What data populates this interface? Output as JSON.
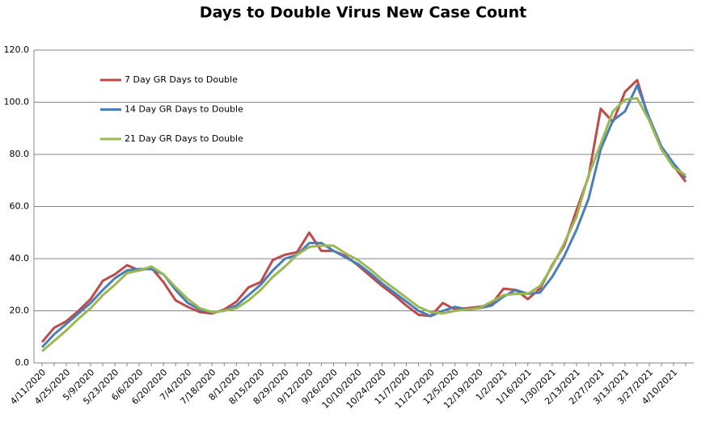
{
  "chart_data": {
    "type": "line",
    "title": "Days to Double Virus New Case Count",
    "categories": [
      "4/11/2020",
      null,
      "4/25/2020",
      null,
      "5/9/2020",
      null,
      "5/23/2020",
      null,
      "6/6/2020",
      null,
      "6/20/2020",
      null,
      "7/4/2020",
      null,
      "7/18/2020",
      null,
      "8/1/2020",
      null,
      "8/15/2020",
      null,
      "8/29/2020",
      null,
      "9/12/2020",
      null,
      "9/26/2020",
      null,
      "10/10/2020",
      null,
      "10/24/2020",
      null,
      "11/7/2020",
      null,
      "11/21/2020",
      null,
      "12/5/2020",
      null,
      "12/19/2020",
      null,
      "1/2/2021",
      null,
      "1/16/2021",
      null,
      "1/30/2021",
      null,
      "2/13/2021",
      null,
      "2/27/2021",
      null,
      "3/13/2021",
      null,
      "3/27/2021",
      null,
      "4/10/2021",
      null
    ],
    "series": [
      {
        "name": "7 Day GR Days to Double",
        "color": "#be4b48",
        "values": [
          8,
          13.5,
          16,
          20,
          24.5,
          31.5,
          34,
          37.5,
          35.5,
          36.5,
          31,
          24,
          21.5,
          19.5,
          19,
          20.5,
          23.5,
          29,
          31,
          39.5,
          41.5,
          42.5,
          50,
          43,
          43,
          41,
          37.5,
          33.5,
          29.5,
          26,
          22,
          18.5,
          18,
          23,
          20.5,
          21,
          21.5,
          22.5,
          28.5,
          28,
          24.5,
          28.5,
          37.5,
          45,
          58.5,
          71.5,
          97.5,
          92.5,
          104,
          108.5,
          93,
          82,
          75.5,
          69.5
        ]
      },
      {
        "name": "14 Day GR Days to Double",
        "color": "#4a7ebb",
        "values": [
          6,
          11,
          15,
          19,
          23,
          28,
          32.5,
          35.5,
          36,
          36,
          34,
          28,
          23,
          20.5,
          19.5,
          20,
          22,
          26,
          30,
          35.5,
          40,
          41.5,
          46,
          46,
          43,
          40.5,
          38,
          34.5,
          30.5,
          27,
          23.5,
          20,
          18,
          20,
          21.5,
          20.5,
          21,
          22,
          25.5,
          28,
          26.5,
          27,
          33,
          41,
          51,
          63,
          82,
          93,
          96.5,
          106.5,
          94,
          83,
          76.5,
          71
        ]
      },
      {
        "name": "21 Day GR Days to Double",
        "color": "#98b954",
        "values": [
          4.5,
          8.5,
          12.5,
          17,
          21,
          26,
          30,
          34.5,
          35.5,
          37,
          34,
          29,
          24.5,
          21,
          19.5,
          20,
          21,
          24,
          28,
          33,
          37,
          41.5,
          44.5,
          45,
          45,
          42,
          39.5,
          36,
          32,
          28.5,
          25,
          21.5,
          19.5,
          19,
          20,
          20.5,
          21,
          23.5,
          26,
          26.5,
          26.5,
          29.5,
          37,
          46,
          56,
          72,
          84,
          96.5,
          101,
          101.5,
          93,
          82,
          75,
          72
        ]
      }
    ],
    "ylim": [
      0,
      120
    ],
    "yticks": [
      {
        "value": 0,
        "label": "0.0"
      },
      {
        "value": 20,
        "label": "20.0"
      },
      {
        "value": 40,
        "label": "40.0"
      },
      {
        "value": 60,
        "label": "60.0"
      },
      {
        "value": 80,
        "label": "80.0"
      },
      {
        "value": 100,
        "label": "100.0"
      },
      {
        "value": 120,
        "label": "120.0"
      }
    ],
    "grid": true,
    "legend": "top-left"
  }
}
